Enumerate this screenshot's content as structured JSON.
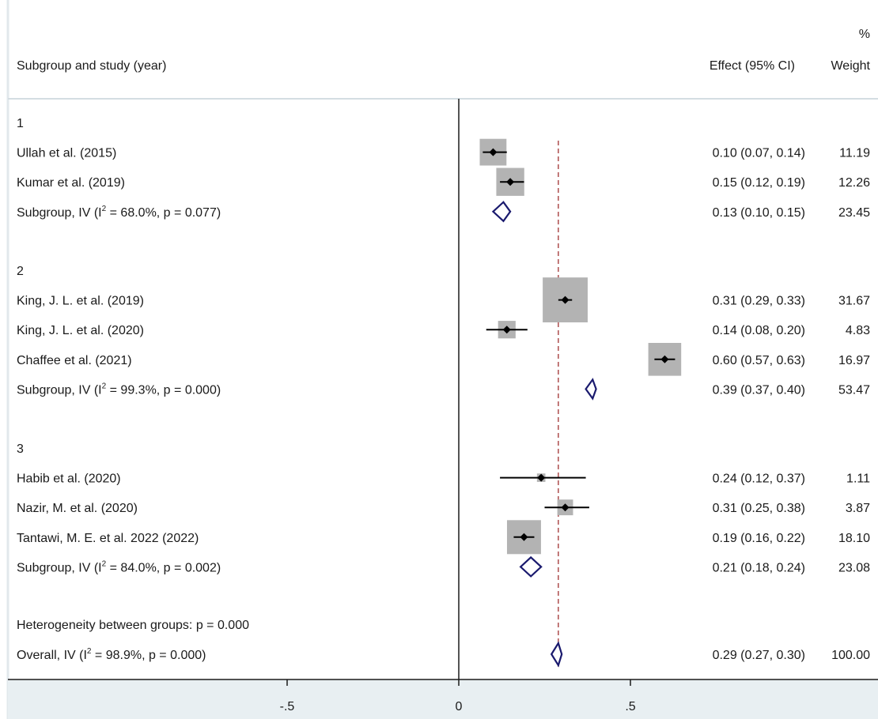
{
  "header": {
    "col_study": "Subgroup and study (year)",
    "col_effect": "Effect (95% CI)",
    "col_weight_pct": "%",
    "col_weight": "Weight"
  },
  "chart_data": {
    "type": "forest",
    "x_ticks": [
      {
        "value": -0.5,
        "label": "-.5"
      },
      {
        "value": 0,
        "label": "0"
      },
      {
        "value": 0.5,
        "label": ".5"
      }
    ],
    "overall_line": 0.29,
    "colors": {
      "box": "#b3b3b3",
      "diamond": "#1a1a6e",
      "overall_line": "#a03030",
      "axis_panel": "#e8eff2"
    },
    "groups": [
      {
        "label": "1",
        "studies": [
          {
            "name": "Ullah  et al. (2015)",
            "es": 0.1,
            "lo": 0.07,
            "hi": 0.14,
            "weight": 11.19,
            "ci_text": "0.10 (0.07, 0.14)",
            "weight_text": "11.19"
          },
          {
            "name": "Kumar et al. (2019)",
            "es": 0.15,
            "lo": 0.12,
            "hi": 0.19,
            "weight": 12.26,
            "ci_text": "0.15 (0.12, 0.19)",
            "weight_text": "12.26"
          }
        ],
        "subtotal": {
          "label_pre": "Subgroup, IV (I",
          "label_post": " = 68.0%, p = 0.077)",
          "es": 0.13,
          "lo": 0.1,
          "hi": 0.15,
          "ci_text": "0.13 (0.10, 0.15)",
          "weight_text": "23.45"
        }
      },
      {
        "label": "2",
        "studies": [
          {
            "name": "King, J. L.  et al. (2019)",
            "es": 0.31,
            "lo": 0.29,
            "hi": 0.33,
            "weight": 31.67,
            "ci_text": "0.31 (0.29, 0.33)",
            "weight_text": "31.67"
          },
          {
            "name": "King, J. L.  et al. (2020)",
            "es": 0.14,
            "lo": 0.08,
            "hi": 0.2,
            "weight": 4.83,
            "ci_text": "0.14 (0.08, 0.20)",
            "weight_text": "4.83"
          },
          {
            "name": "Chaffee et al. (2021)",
            "es": 0.6,
            "lo": 0.57,
            "hi": 0.63,
            "weight": 16.97,
            "ci_text": "0.60 (0.57, 0.63)",
            "weight_text": "16.97"
          }
        ],
        "subtotal": {
          "label_pre": "Subgroup, IV (I",
          "label_post": " = 99.3%, p = 0.000)",
          "es": 0.39,
          "lo": 0.37,
          "hi": 0.4,
          "ci_text": "0.39 (0.37, 0.40)",
          "weight_text": "53.47"
        }
      },
      {
        "label": "3",
        "studies": [
          {
            "name": "Habib et al. (2020)",
            "es": 0.24,
            "lo": 0.12,
            "hi": 0.37,
            "weight": 1.11,
            "ci_text": "0.24 (0.12, 0.37)",
            "weight_text": "1.11"
          },
          {
            "name": "Nazir, M. et al. (2020)",
            "es": 0.31,
            "lo": 0.25,
            "hi": 0.38,
            "weight": 3.87,
            "ci_text": "0.31 (0.25, 0.38)",
            "weight_text": "3.87"
          },
          {
            "name": "Tantawi, M. E. et al. 2022 (2022)",
            "es": 0.19,
            "lo": 0.16,
            "hi": 0.22,
            "weight": 18.1,
            "ci_text": "0.19 (0.16, 0.22)",
            "weight_text": "18.10"
          }
        ],
        "subtotal": {
          "label_pre": "Subgroup, IV (I",
          "label_post": " = 84.0%, p = 0.002)",
          "es": 0.21,
          "lo": 0.18,
          "hi": 0.24,
          "ci_text": "0.21 (0.18, 0.24)",
          "weight_text": "23.08"
        }
      }
    ],
    "heterogeneity": "Heterogeneity between groups: p = 0.000",
    "overall": {
      "label_pre": "Overall, IV (I",
      "label_post": " = 98.9%, p = 0.000)",
      "es": 0.29,
      "lo": 0.27,
      "hi": 0.3,
      "ci_text": "0.29 (0.27, 0.30)",
      "weight_text": "100.00"
    }
  }
}
